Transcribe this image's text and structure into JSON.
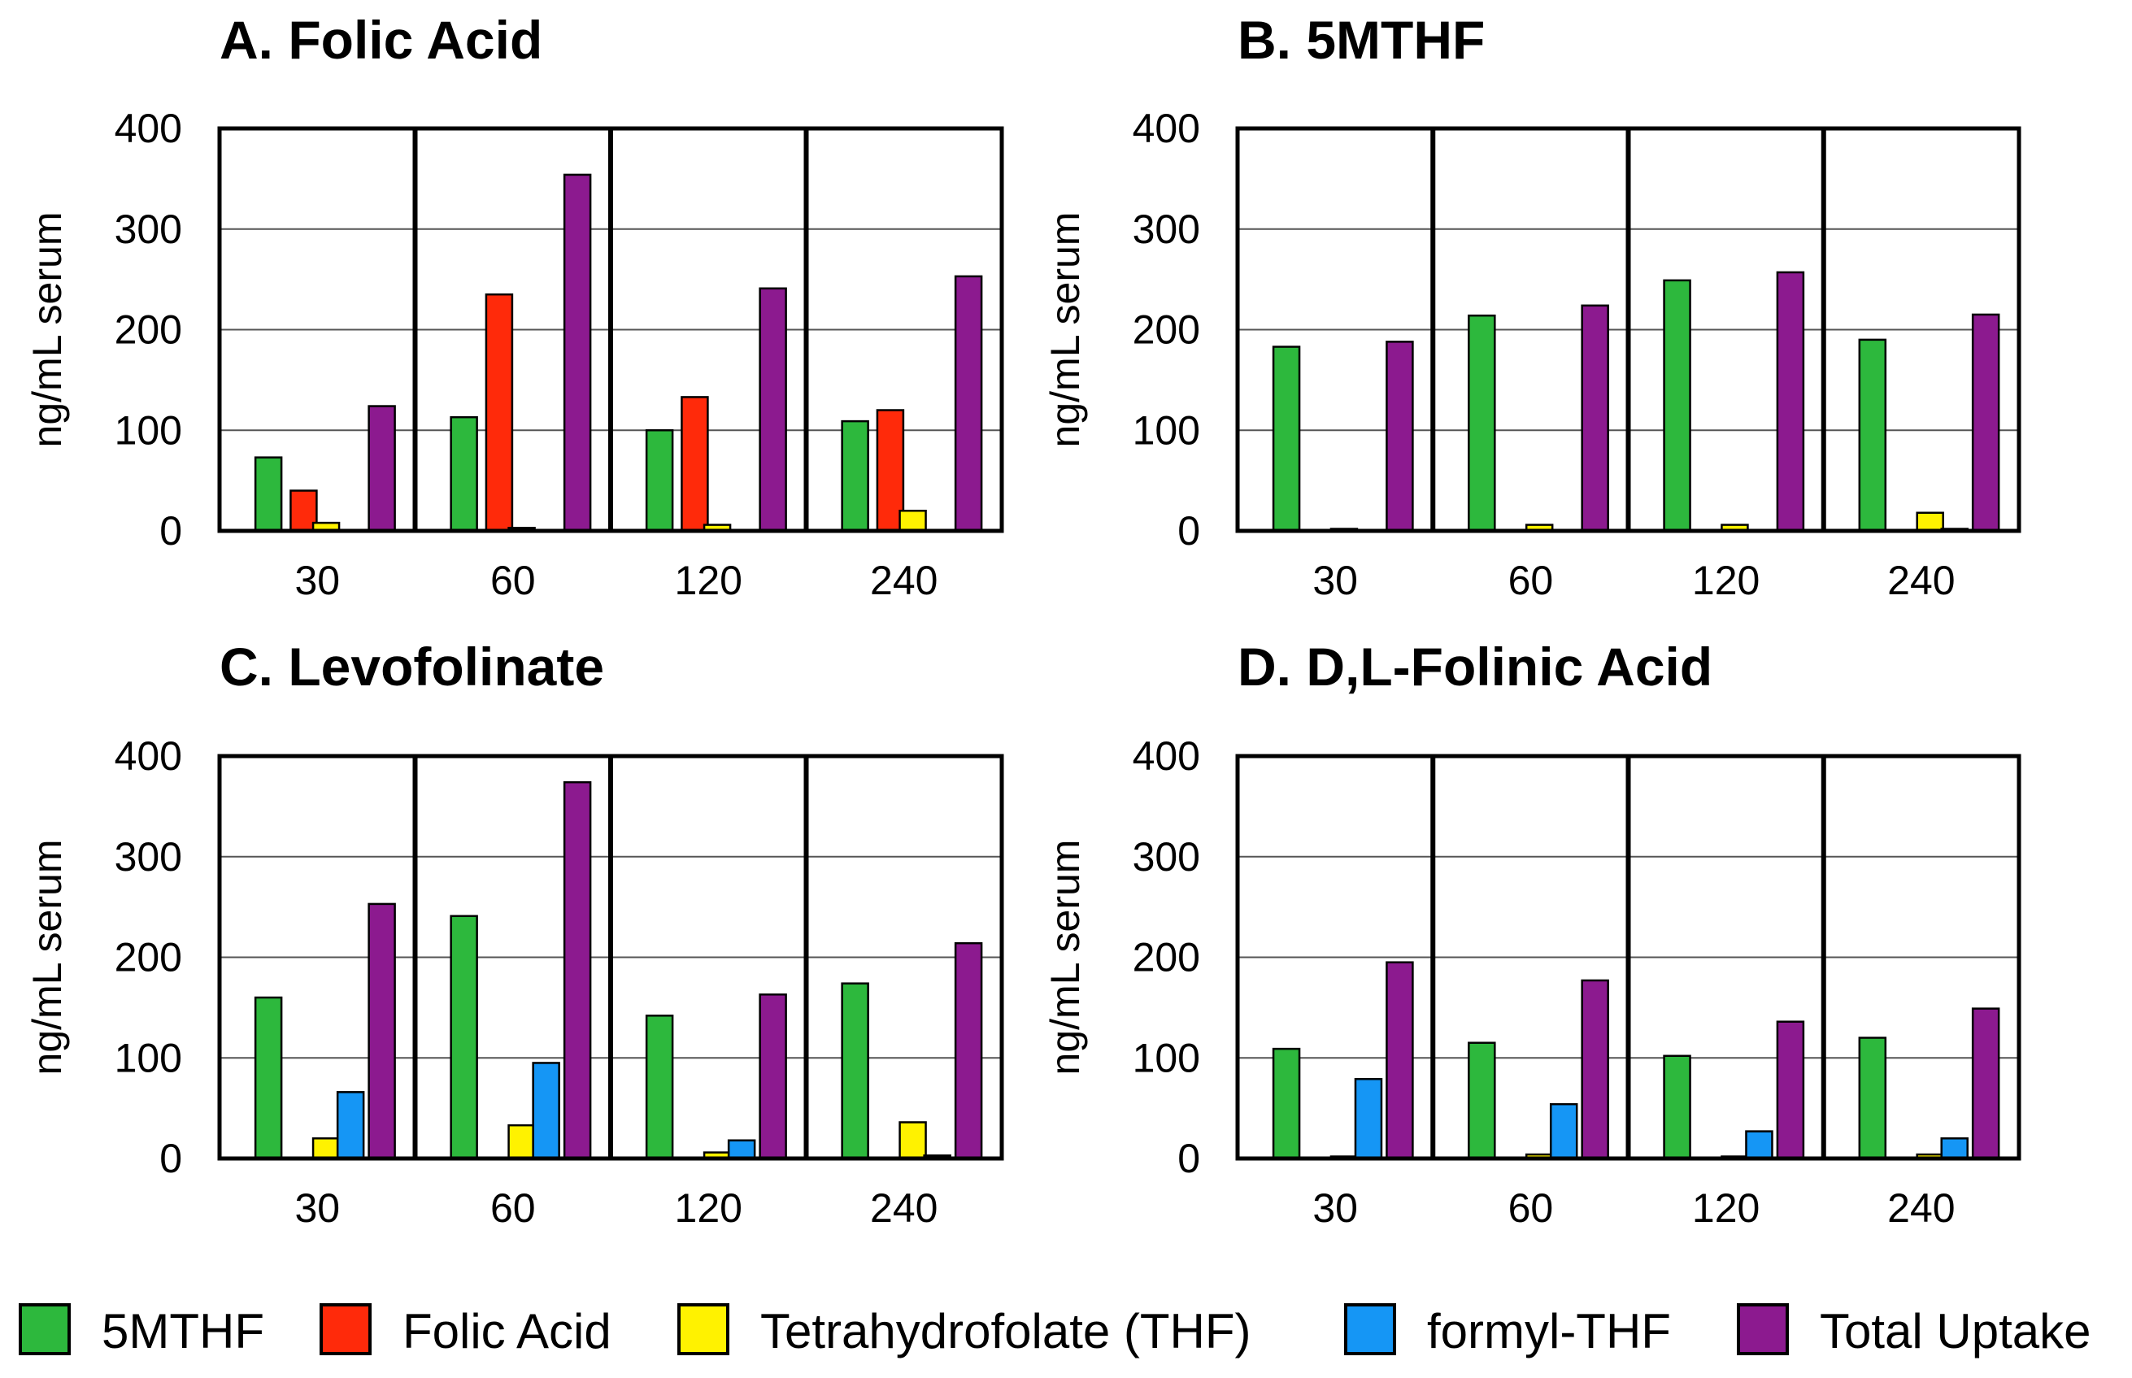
{
  "chart_data": [
    {
      "type": "bar",
      "title": "A. Folic Acid",
      "ylabel": "ng/mL serum",
      "xlabel": "",
      "ylim": [
        0,
        400
      ],
      "yticks": [
        "0",
        "100",
        "200",
        "300",
        "400"
      ],
      "categories": [
        "30",
        "60",
        "120",
        "240"
      ],
      "series": [
        {
          "name": "5MTHF",
          "values": [
            73,
            113,
            100,
            109
          ]
        },
        {
          "name": "Folic Acid",
          "values": [
            40,
            235,
            133,
            120
          ]
        },
        {
          "name": "Tetrahydrofolate (THF)",
          "values": [
            8,
            3,
            6,
            20
          ]
        },
        {
          "name": "formyl-THF",
          "values": [
            0,
            0,
            0,
            0
          ]
        },
        {
          "name": "Total Uptake",
          "values": [
            124,
            354,
            241,
            253
          ]
        }
      ]
    },
    {
      "type": "bar",
      "title": "B. 5MTHF",
      "ylabel": "ng/mL serum",
      "xlabel": "",
      "ylim": [
        0,
        400
      ],
      "yticks": [
        "0",
        "100",
        "200",
        "300",
        "400"
      ],
      "categories": [
        "30",
        "60",
        "120",
        "240"
      ],
      "series": [
        {
          "name": "5MTHF",
          "values": [
            183,
            214,
            249,
            190
          ]
        },
        {
          "name": "Folic Acid",
          "values": [
            0,
            0,
            0,
            0
          ]
        },
        {
          "name": "Tetrahydrofolate (THF)",
          "values": [
            2,
            6,
            6,
            18
          ]
        },
        {
          "name": "formyl-THF",
          "values": [
            0,
            0,
            0,
            2
          ]
        },
        {
          "name": "Total Uptake",
          "values": [
            188,
            224,
            257,
            215
          ]
        }
      ]
    },
    {
      "type": "bar",
      "title": "C. Levofolinate",
      "ylabel": "ng/mL serum",
      "xlabel": "",
      "ylim": [
        0,
        400
      ],
      "yticks": [
        "0",
        "100",
        "200",
        "300",
        "400"
      ],
      "categories": [
        "30",
        "60",
        "120",
        "240"
      ],
      "series": [
        {
          "name": "5MTHF",
          "values": [
            160,
            241,
            142,
            174
          ]
        },
        {
          "name": "Folic Acid",
          "values": [
            0,
            0,
            0,
            0
          ]
        },
        {
          "name": "Tetrahydrofolate (THF)",
          "values": [
            20,
            33,
            6,
            36
          ]
        },
        {
          "name": "formyl-THF",
          "values": [
            66,
            95,
            18,
            3
          ]
        },
        {
          "name": "Total Uptake",
          "values": [
            253,
            374,
            163,
            214
          ]
        }
      ]
    },
    {
      "type": "bar",
      "title": "D. D,L-Folinic Acid",
      "ylabel": "ng/mL serum",
      "xlabel": "",
      "ylim": [
        0,
        400
      ],
      "yticks": [
        "0",
        "100",
        "200",
        "300",
        "400"
      ],
      "categories": [
        "30",
        "60",
        "120",
        "240"
      ],
      "series": [
        {
          "name": "5MTHF",
          "values": [
            109,
            115,
            102,
            120
          ]
        },
        {
          "name": "Folic Acid",
          "values": [
            0,
            0,
            0,
            0
          ]
        },
        {
          "name": "Tetrahydrofolate (THF)",
          "values": [
            2,
            4,
            2,
            4
          ]
        },
        {
          "name": "formyl-THF",
          "values": [
            79,
            54,
            27,
            20
          ]
        },
        {
          "name": "Total Uptake",
          "values": [
            195,
            177,
            136,
            149
          ]
        }
      ]
    }
  ],
  "legend": {
    "items": [
      {
        "label": "5MTHF",
        "color": "#2db83d"
      },
      {
        "label": "Folic Acid",
        "color": "#ff2a0a"
      },
      {
        "label": "Tetrahydrofolate (THF)",
        "color": "#fff200"
      },
      {
        "label": "formyl-THF",
        "color": "#1596f5"
      },
      {
        "label": "Total Uptake",
        "color": "#8c1a8f"
      }
    ]
  }
}
